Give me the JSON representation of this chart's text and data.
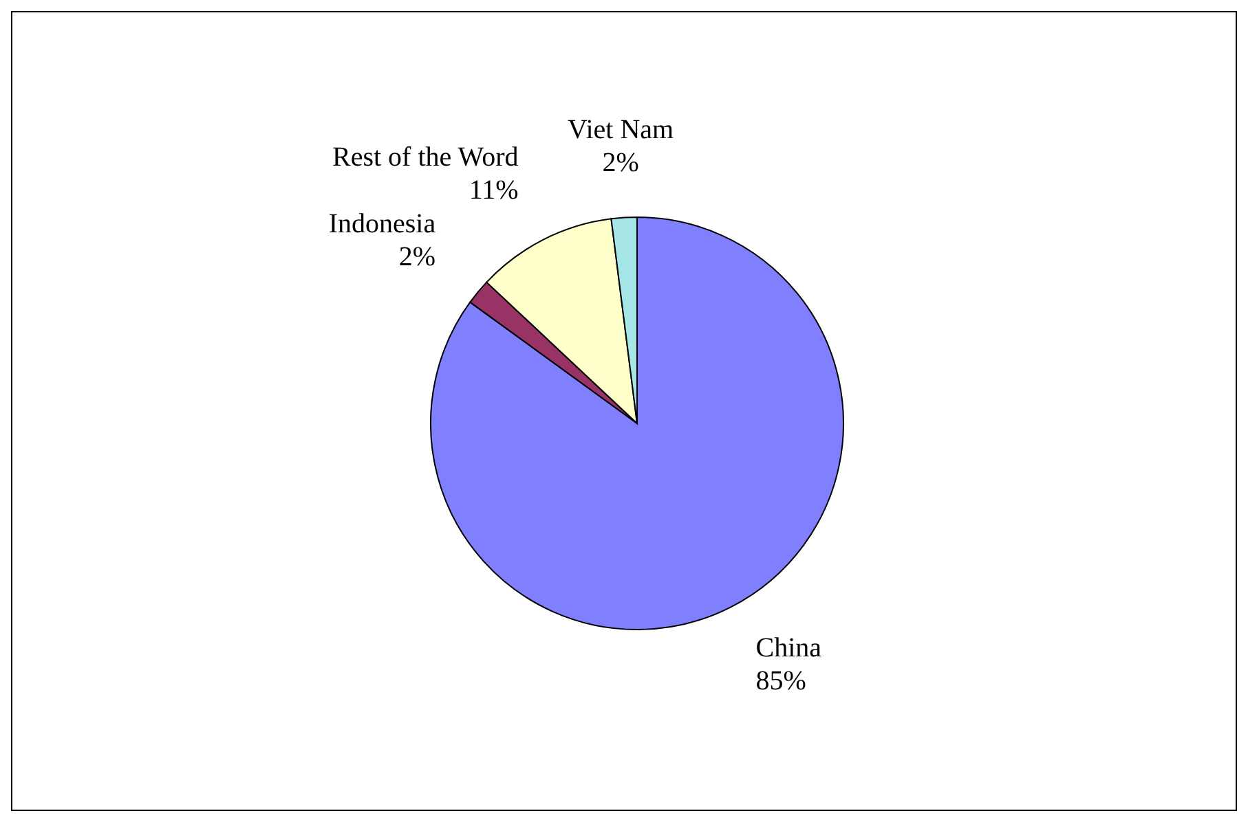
{
  "chart_data": {
    "type": "pie",
    "categories": [
      "China",
      "Indonesia",
      "Rest of the Word",
      "Viet Nam"
    ],
    "values": [
      85,
      2,
      11,
      2
    ],
    "colors": [
      "#8080ff",
      "#993366",
      "#ffffcc",
      "#a6e6e6"
    ],
    "value_labels": [
      "85%",
      "2%",
      "11%",
      "2%"
    ]
  }
}
